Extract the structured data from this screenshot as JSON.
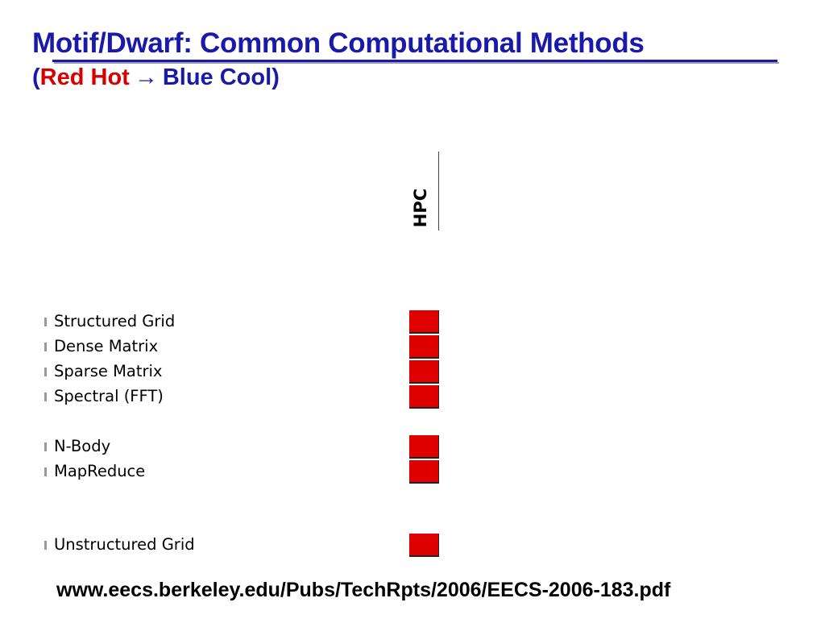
{
  "title": "Motif/Dwarf: Common Computational Methods",
  "subtitle": {
    "open_paren": "(",
    "red_hot": "Red Hot",
    "arrow": "→",
    "blue_cool": "Blue Cool",
    "close_paren": ")"
  },
  "column_header": "HPC",
  "rows": [
    {
      "label": "Structured Grid",
      "heat": "red"
    },
    {
      "label": "Dense Matrix",
      "heat": "red"
    },
    {
      "label": "Sparse Matrix",
      "heat": "red"
    },
    {
      "label": "Spectral (FFT)",
      "heat": "red"
    },
    {
      "label": "N-Body",
      "heat": "red"
    },
    {
      "label": "MapReduce",
      "heat": "red"
    },
    {
      "label": "Unstructured Grid",
      "heat": "red"
    }
  ],
  "colors": {
    "title": "#1a1aa8",
    "red_hot": "#d50000",
    "cell_red": "#df0000"
  },
  "footer": "www.eecs.berkeley.edu/Pubs/TechRpts/2006/EECS-2006-183.pdf"
}
